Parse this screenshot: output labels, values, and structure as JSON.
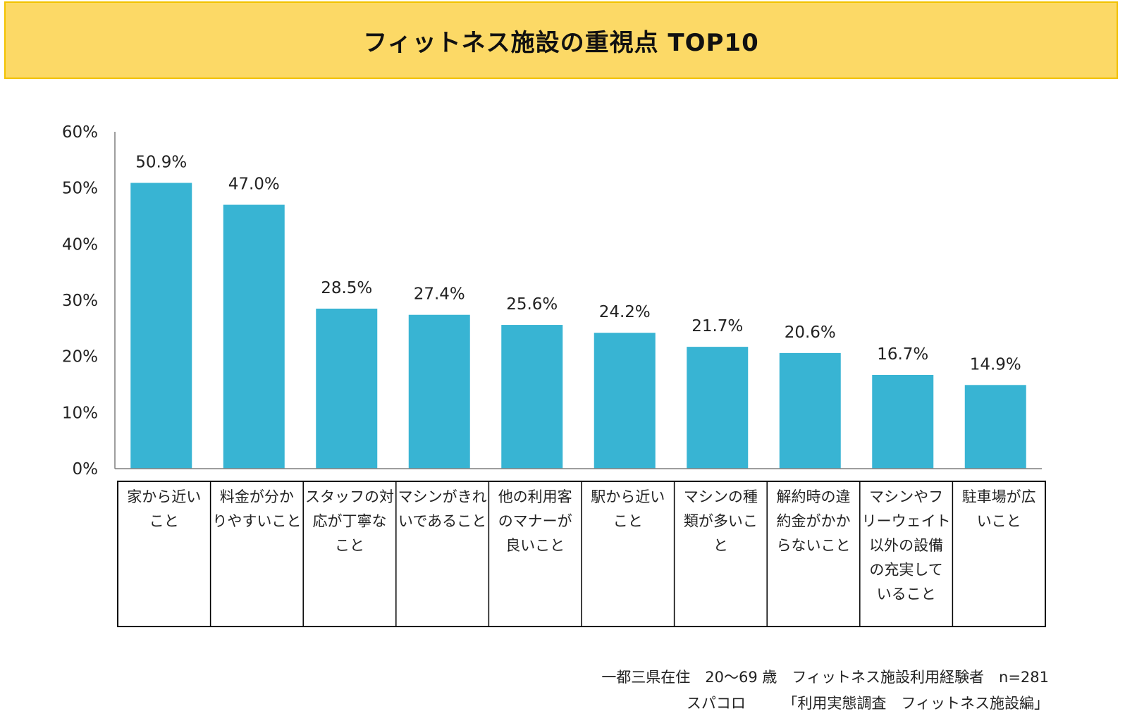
{
  "title": "フィットネス施設の重視点 TOP10",
  "colors": {
    "bar": "#38b4d3",
    "banner": "#fcd966",
    "axis": "#7f7f7f"
  },
  "chart_data": {
    "type": "bar",
    "title": "フィットネス施設の重視点 TOP10",
    "categories": [
      [
        "家から近い",
        "こと"
      ],
      [
        "料金が分か",
        "りやすいこと"
      ],
      [
        "スタッフの対",
        "応が丁寧な",
        "こと"
      ],
      [
        "マシンがきれ",
        "いであること"
      ],
      [
        "他の利用客",
        "のマナーが",
        "良いこと"
      ],
      [
        "駅から近い",
        "こと"
      ],
      [
        "マシンの種",
        "類が多いこ",
        "と"
      ],
      [
        "解約時の違",
        "約金がかか",
        "らないこと"
      ],
      [
        "マシンやフ",
        "リーウェイト",
        "以外の設備",
        "の充実して",
        "いること"
      ],
      [
        "駐車場が広",
        "いこと"
      ]
    ],
    "values": [
      50.9,
      47.0,
      28.5,
      27.4,
      25.6,
      24.2,
      21.7,
      20.6,
      16.7,
      14.9
    ],
    "data_labels": [
      "50.9%",
      "47.0%",
      "28.5%",
      "27.4%",
      "25.6%",
      "24.2%",
      "21.7%",
      "20.6%",
      "16.7%",
      "14.9%"
    ],
    "y_ticks": [
      "0%",
      "10%",
      "20%",
      "30%",
      "40%",
      "50%",
      "60%"
    ],
    "ylim": [
      0,
      60
    ],
    "xlabel": "",
    "ylabel": "",
    "grid": false,
    "legend": "none"
  },
  "footnote": {
    "line1": "一都三県在住　20～69 歳　フィットネス施設利用経験者　n=281",
    "line2": "スパコロ　　　「利用実態調査　フィットネス施設編」"
  }
}
